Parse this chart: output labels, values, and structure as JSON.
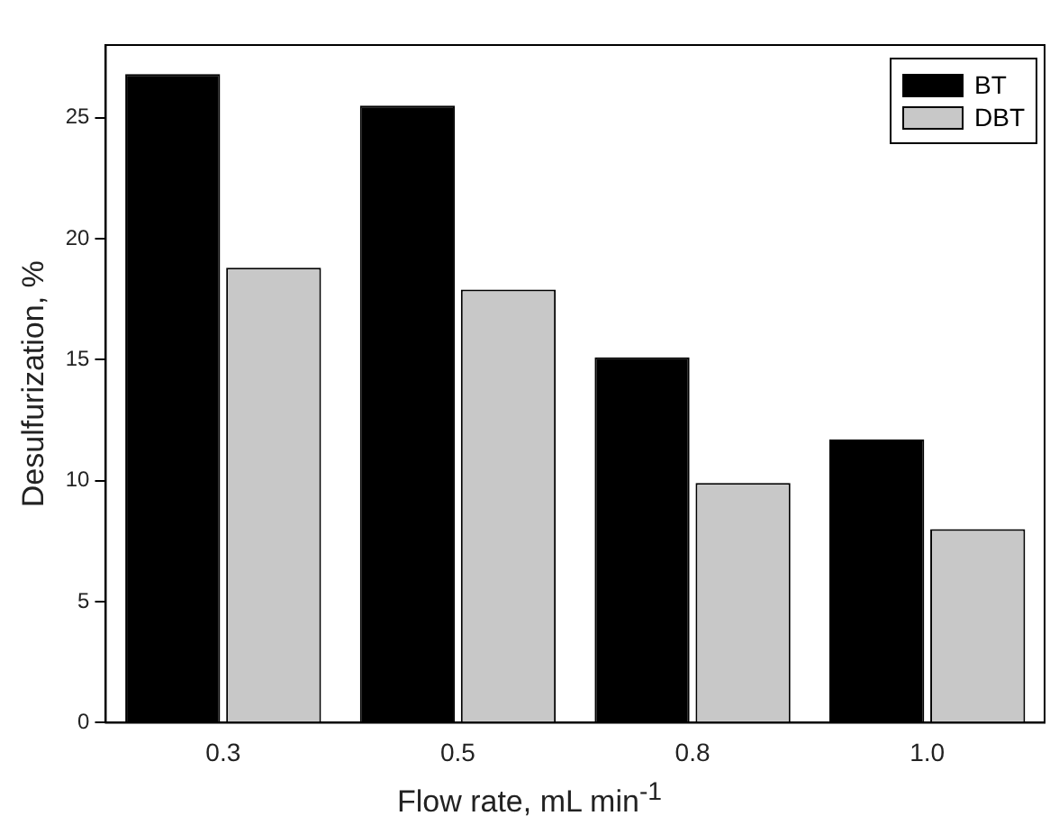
{
  "chart_data": {
    "type": "bar",
    "xlabel": "Flow rate, mL min$^{-1}$",
    "ylabel": "Desulfurization, %",
    "categories": [
      "0.3",
      "0.5",
      "0.8",
      "1.0"
    ],
    "series": [
      {
        "name": "BT",
        "color": "#000000",
        "values": [
          26.8,
          25.5,
          15.1,
          11.7
        ]
      },
      {
        "name": "DBT",
        "color": "#c8c8c8",
        "values": [
          18.8,
          17.9,
          9.9,
          8.0
        ]
      }
    ],
    "ylim": [
      0,
      28
    ],
    "yticks": [
      0,
      5,
      10,
      15,
      20,
      25
    ],
    "grid": false,
    "legend": "top right"
  }
}
